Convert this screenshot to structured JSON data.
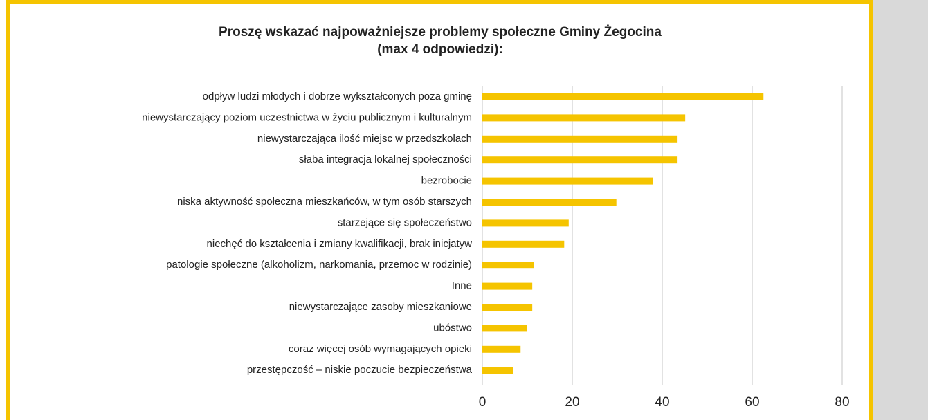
{
  "chart_data": {
    "type": "bar",
    "orientation": "horizontal",
    "title": "Proszę wskazać najpoważniejsze problemy społeczne Gminy Żegocina",
    "subtitle": "(max 4 odpowiedzi):",
    "categories": [
      "odpływ ludzi młodych i dobrze wykształconych poza gminę",
      "niewystarczający poziom uczestnictwa w życiu publicznym i kulturalnym",
      "niewystarczająca ilość miejsc w przedszkolach",
      "słaba integracja lokalnej społeczności",
      "bezrobocie",
      "niska aktywność społeczna mieszkańców, w tym osób starszych",
      "starzejące się społeczeństwo",
      "niechęć do kształcenia i zmiany kwalifikacji, brak inicjatyw",
      "patologie społeczne (alkoholizm, narkomania, przemoc w rodzinie)",
      "Inne",
      "niewystarczające zasoby mieszkaniowe",
      "ubóstwo",
      "coraz więcej osób wymagających opieki",
      "przestępczość – niskie poczucie bezpieczeństwa"
    ],
    "values": [
      62.5,
      45.1,
      43.4,
      43.4,
      38,
      29.8,
      19.2,
      18.2,
      11.4,
      11.1,
      11.1,
      10,
      8.5,
      6.8
    ],
    "color": "#f5c400",
    "xlim": [
      0,
      80
    ],
    "xticks": [
      0,
      20,
      40,
      60,
      80
    ],
    "grid": true
  }
}
